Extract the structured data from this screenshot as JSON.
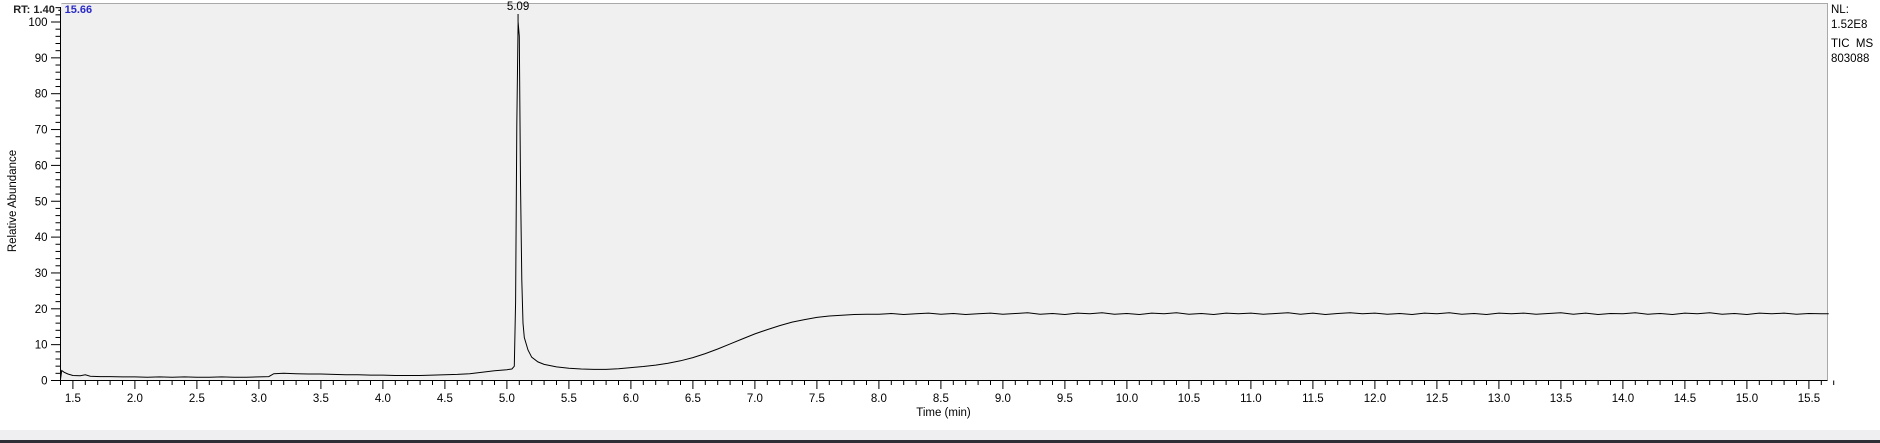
{
  "header": {
    "segments": [
      {
        "text": "RT: 1.40 - ",
        "color": "#222222"
      },
      {
        "text": "15.66",
        "color": "#2a2ac8"
      }
    ]
  },
  "annotation": {
    "lines": [
      "NL:",
      "1.52E8",
      "TIC  MS",
      "803088"
    ]
  },
  "colors": {
    "plot_background": "#f0f0f0",
    "plot_border": "#a9a9a9",
    "axis": "#000000",
    "trace": "#000000",
    "statusbar_strip": "#efeff1",
    "statusbar_edge": "#2e2e37",
    "header_blue": "#2a2ac8"
  },
  "chart_data": {
    "type": "line",
    "title": "",
    "xlabel": "Time (min)",
    "ylabel": "Relative Abundance",
    "xlim": [
      1.4,
      15.66
    ],
    "ylim": [
      0,
      104
    ],
    "grid": false,
    "legend": "none",
    "x_ticks": [
      "1.5",
      "2.0",
      "2.5",
      "3.0",
      "3.5",
      "4.0",
      "4.5",
      "5.0",
      "5.5",
      "6.0",
      "6.5",
      "7.0",
      "7.5",
      "8.0",
      "8.5",
      "9.0",
      "9.5",
      "10.0",
      "10.5",
      "11.0",
      "11.5",
      "12.0",
      "12.5",
      "13.0",
      "13.5",
      "14.0",
      "14.5",
      "15.0",
      "15.5"
    ],
    "x_minor_step": 0.1,
    "y_ticks": [
      "0",
      "10",
      "20",
      "30",
      "40",
      "50",
      "60",
      "70",
      "80",
      "90",
      "100"
    ],
    "y_minor_step": 2,
    "peak_label": {
      "text": "5.09",
      "t": 5.09,
      "value": 100
    },
    "series": [
      {
        "name": "TIC",
        "color": "#000000",
        "points": [
          [
            1.4,
            0.3
          ],
          [
            1.41,
            2.8
          ],
          [
            1.43,
            2.3
          ],
          [
            1.46,
            1.8
          ],
          [
            1.5,
            1.4
          ],
          [
            1.56,
            1.3
          ],
          [
            1.6,
            1.6
          ],
          [
            1.64,
            1.2
          ],
          [
            1.72,
            1.1
          ],
          [
            1.8,
            1.1
          ],
          [
            1.9,
            1.0
          ],
          [
            2.0,
            1.0
          ],
          [
            2.1,
            0.9
          ],
          [
            2.2,
            1.0
          ],
          [
            2.3,
            0.9
          ],
          [
            2.4,
            1.0
          ],
          [
            2.5,
            0.9
          ],
          [
            2.6,
            0.9
          ],
          [
            2.7,
            1.0
          ],
          [
            2.8,
            0.9
          ],
          [
            2.9,
            0.9
          ],
          [
            3.0,
            1.0
          ],
          [
            3.08,
            1.1
          ],
          [
            3.12,
            1.9
          ],
          [
            3.2,
            2.0
          ],
          [
            3.3,
            1.9
          ],
          [
            3.4,
            1.8
          ],
          [
            3.5,
            1.8
          ],
          [
            3.6,
            1.7
          ],
          [
            3.7,
            1.6
          ],
          [
            3.8,
            1.6
          ],
          [
            3.9,
            1.5
          ],
          [
            4.0,
            1.5
          ],
          [
            4.1,
            1.4
          ],
          [
            4.2,
            1.4
          ],
          [
            4.3,
            1.4
          ],
          [
            4.4,
            1.5
          ],
          [
            4.5,
            1.6
          ],
          [
            4.6,
            1.7
          ],
          [
            4.7,
            1.9
          ],
          [
            4.8,
            2.3
          ],
          [
            4.9,
            2.7
          ],
          [
            5.0,
            3.0
          ],
          [
            5.04,
            3.2
          ],
          [
            5.06,
            4.0
          ],
          [
            5.07,
            22.0
          ],
          [
            5.08,
            71.0
          ],
          [
            5.09,
            100.0
          ],
          [
            5.1,
            96.0
          ],
          [
            5.11,
            55.0
          ],
          [
            5.12,
            28.0
          ],
          [
            5.13,
            16.0
          ],
          [
            5.14,
            12.0
          ],
          [
            5.17,
            8.5
          ],
          [
            5.2,
            6.5
          ],
          [
            5.25,
            5.2
          ],
          [
            5.3,
            4.5
          ],
          [
            5.4,
            3.8
          ],
          [
            5.5,
            3.4
          ],
          [
            5.6,
            3.2
          ],
          [
            5.7,
            3.1
          ],
          [
            5.8,
            3.1
          ],
          [
            5.9,
            3.3
          ],
          [
            6.0,
            3.6
          ],
          [
            6.1,
            3.9
          ],
          [
            6.2,
            4.3
          ],
          [
            6.3,
            4.8
          ],
          [
            6.4,
            5.5
          ],
          [
            6.5,
            6.4
          ],
          [
            6.6,
            7.5
          ],
          [
            6.7,
            8.8
          ],
          [
            6.8,
            10.2
          ],
          [
            6.9,
            11.6
          ],
          [
            7.0,
            13.0
          ],
          [
            7.1,
            14.2
          ],
          [
            7.2,
            15.3
          ],
          [
            7.3,
            16.3
          ],
          [
            7.4,
            17.0
          ],
          [
            7.5,
            17.6
          ],
          [
            7.6,
            18.0
          ],
          [
            7.7,
            18.2
          ],
          [
            7.8,
            18.4
          ],
          [
            7.9,
            18.5
          ],
          [
            8.0,
            18.5
          ],
          [
            8.1,
            18.7
          ],
          [
            8.2,
            18.4
          ],
          [
            8.3,
            18.6
          ],
          [
            8.4,
            18.8
          ],
          [
            8.5,
            18.5
          ],
          [
            8.6,
            18.7
          ],
          [
            8.7,
            18.4
          ],
          [
            8.8,
            18.6
          ],
          [
            8.9,
            18.8
          ],
          [
            9.0,
            18.5
          ],
          [
            9.1,
            18.7
          ],
          [
            9.2,
            18.9
          ],
          [
            9.3,
            18.5
          ],
          [
            9.4,
            18.7
          ],
          [
            9.5,
            18.4
          ],
          [
            9.6,
            18.8
          ],
          [
            9.7,
            18.6
          ],
          [
            9.8,
            18.9
          ],
          [
            9.9,
            18.5
          ],
          [
            10.0,
            18.7
          ],
          [
            10.1,
            18.4
          ],
          [
            10.2,
            18.8
          ],
          [
            10.3,
            18.6
          ],
          [
            10.4,
            18.9
          ],
          [
            10.5,
            18.5
          ],
          [
            10.6,
            18.7
          ],
          [
            10.7,
            18.4
          ],
          [
            10.8,
            18.8
          ],
          [
            10.9,
            18.6
          ],
          [
            11.0,
            18.8
          ],
          [
            11.1,
            18.5
          ],
          [
            11.2,
            18.7
          ],
          [
            11.3,
            18.9
          ],
          [
            11.4,
            18.5
          ],
          [
            11.5,
            18.8
          ],
          [
            11.6,
            18.4
          ],
          [
            11.7,
            18.7
          ],
          [
            11.8,
            18.9
          ],
          [
            11.9,
            18.6
          ],
          [
            12.0,
            18.8
          ],
          [
            12.1,
            18.5
          ],
          [
            12.2,
            18.7
          ],
          [
            12.3,
            18.4
          ],
          [
            12.4,
            18.8
          ],
          [
            12.5,
            18.6
          ],
          [
            12.6,
            18.9
          ],
          [
            12.7,
            18.5
          ],
          [
            12.8,
            18.7
          ],
          [
            12.9,
            18.4
          ],
          [
            13.0,
            18.8
          ],
          [
            13.1,
            18.6
          ],
          [
            13.2,
            18.8
          ],
          [
            13.3,
            18.5
          ],
          [
            13.4,
            18.7
          ],
          [
            13.5,
            18.9
          ],
          [
            13.6,
            18.5
          ],
          [
            13.7,
            18.8
          ],
          [
            13.8,
            18.4
          ],
          [
            13.9,
            18.7
          ],
          [
            14.0,
            18.6
          ],
          [
            14.1,
            18.9
          ],
          [
            14.2,
            18.5
          ],
          [
            14.3,
            18.7
          ],
          [
            14.4,
            18.4
          ],
          [
            14.5,
            18.8
          ],
          [
            14.6,
            18.6
          ],
          [
            14.7,
            18.9
          ],
          [
            14.8,
            18.5
          ],
          [
            14.9,
            18.7
          ],
          [
            15.0,
            18.4
          ],
          [
            15.1,
            18.8
          ],
          [
            15.2,
            18.6
          ],
          [
            15.3,
            18.8
          ],
          [
            15.4,
            18.5
          ],
          [
            15.5,
            18.7
          ],
          [
            15.6,
            18.6
          ],
          [
            15.66,
            18.6
          ]
        ]
      }
    ]
  }
}
